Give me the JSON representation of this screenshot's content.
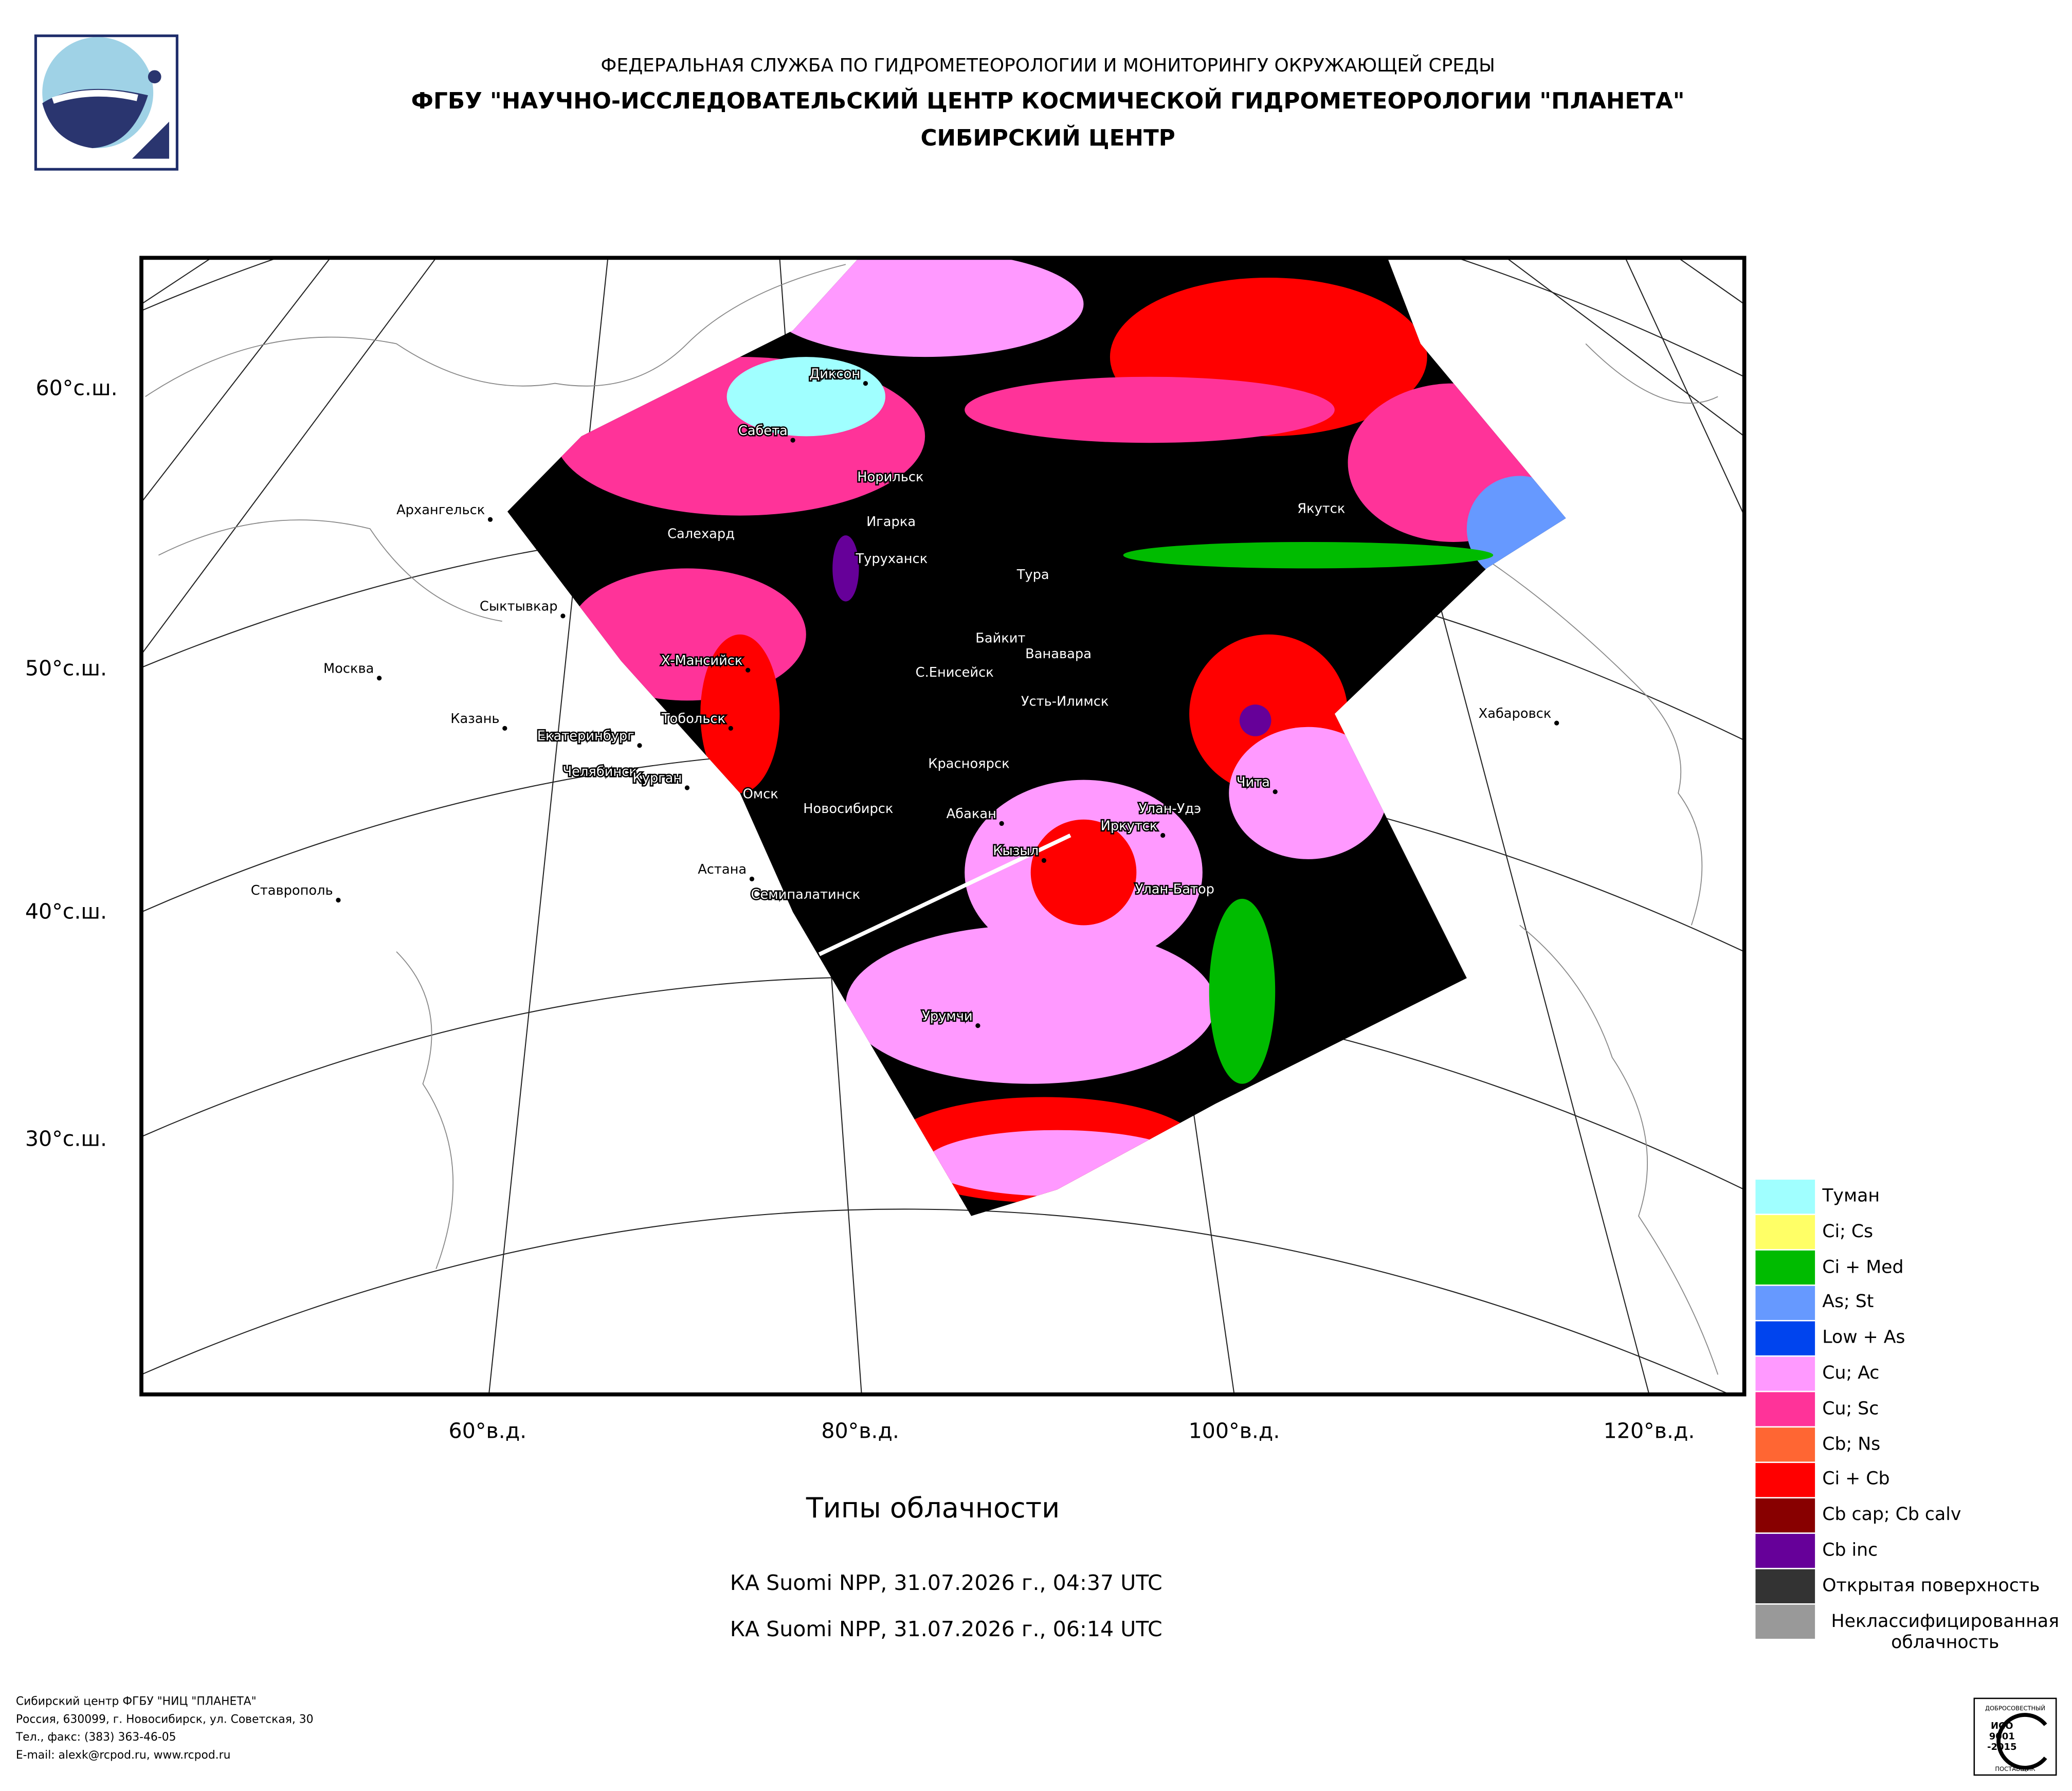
{
  "header": {
    "line1": "ФЕДЕРАЛЬНАЯ СЛУЖБА ПО ГИДРОМЕТЕОРОЛОГИИ И МОНИТОРИНГУ ОКРУЖАЮЩЕЙ СРЕДЫ",
    "line2": "ФГБУ \"НАУЧНО-ИССЛЕДОВАТЕЛЬСКИЙ ЦЕНТР КОСМИЧЕСКОЙ ГИДРОМЕТЕОРОЛОГИИ \"ПЛАНЕТА\"",
    "line3": "СИБИРСКИЙ ЦЕНТР"
  },
  "map": {
    "lat_labels": [
      "60°с.ш.",
      "50°с.ш.",
      "40°с.ш.",
      "30°с.ш."
    ],
    "lon_labels": [
      "60°в.д.",
      "80°в.д.",
      "100°в.д.",
      "120°в.д."
    ],
    "cities": [
      "Архангельск",
      "Сыктывкар",
      "Москва",
      "Казань",
      "Екатеринбург",
      "Челябинск",
      "Курган",
      "Ставрополь",
      "Астана",
      "Семипалатинск",
      "Омск",
      "Новосибирск",
      "Тобольск",
      "Х-Мансийск",
      "Салехард",
      "Сабета",
      "Диксон",
      "Норильск",
      "Игарка",
      "Туруханск",
      "Тура",
      "Байкит",
      "Ванавара",
      "С.Енисейск",
      "Усть-Илимск",
      "Красноярск",
      "Абакан",
      "Кызыл",
      "Иркутск",
      "Улан-Удэ",
      "Чита",
      "Улан-Батор",
      "Урумчи",
      "Якутск",
      "Хабаровск"
    ]
  },
  "title": "Типы облачности",
  "captions": [
    "КА Suomi NPP, 31.07.2026 г., 04:37 UTC",
    "КА Suomi NPP, 31.07.2026 г., 06:14 UTC"
  ],
  "legend": [
    {
      "name": "Туман",
      "color": "#a0ffff"
    },
    {
      "name": "Ci; Cs",
      "color": "#ffff66"
    },
    {
      "name": "Ci + Med",
      "color": "#00bb00"
    },
    {
      "name": "As; St",
      "color": "#6699ff"
    },
    {
      "name": "Low + As",
      "color": "#0044ee"
    },
    {
      "name": "Cu; Ac",
      "color": "#ff99ff"
    },
    {
      "name": "Cu; Sc",
      "color": "#ff3399"
    },
    {
      "name": "Cb; Ns",
      "color": "#ff6633"
    },
    {
      "name": "Ci + Cb",
      "color": "#ff0000"
    },
    {
      "name": "Cb cap; Cb calv",
      "color": "#880000"
    },
    {
      "name": "Cb inc",
      "color": "#660099"
    },
    {
      "name": "Открытая поверхность",
      "color": "#333333"
    },
    {
      "name": "Неклассифицированная облачность",
      "color": "#999999"
    }
  ],
  "footer": [
    "Сибирский центр ФГБУ \"НИЦ \"ПЛАНЕТА\"",
    "Россия, 630099, г. Новосибирск, ул. Советская, 30",
    "Тел., факс: (383) 363-46-05",
    "E-mail: alexk@rcpod.ru, www.rcpod.ru"
  ],
  "iso": {
    "top": "ДОБРОСОВЕСТНЫЙ",
    "line1": "ИСО",
    "line2": "9001",
    "line3": "-2015",
    "bottom": "ПОСТАВЩИК"
  }
}
